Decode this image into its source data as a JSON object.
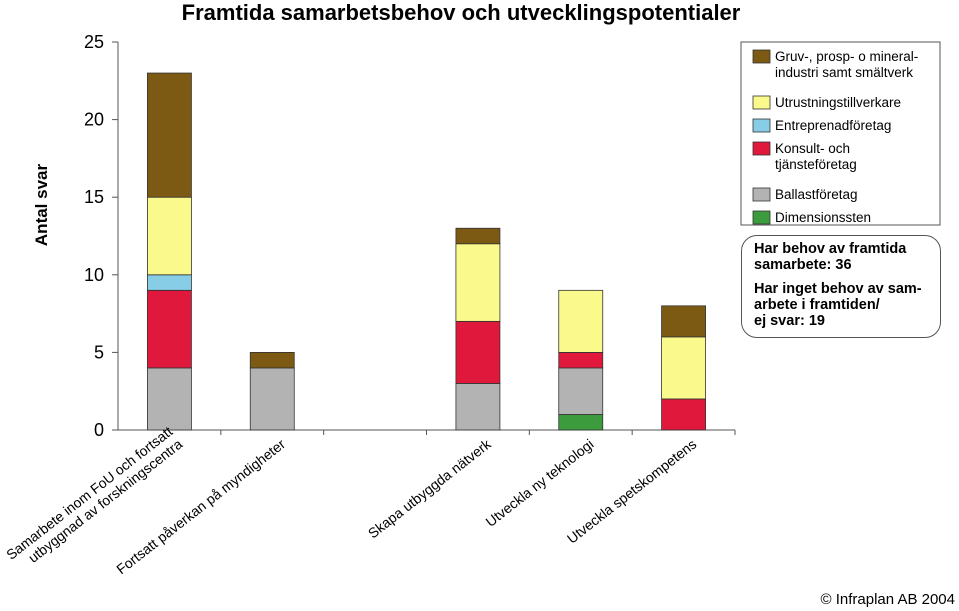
{
  "chart_data": {
    "type": "bar",
    "stacked": true,
    "title": "Framtida samarbetsbehov och utvecklingspotentialer",
    "ylabel": "Antal svar",
    "xlabel": "",
    "ylim": [
      0,
      25
    ],
    "yticks": [
      0,
      5,
      10,
      15,
      20,
      25
    ],
    "grid": false,
    "legend_position": "top-right",
    "categories": [
      "Samarbete inom FoU och fortsatt\nutbyggnad av forskningscentra",
      "Fortsatt påverkan på myndigheter",
      "",
      "Skapa utbyggda nätverk",
      "Utveckla ny teknologi",
      "Utveckla spetskompetens"
    ],
    "series": [
      {
        "name": "Dimensionssten",
        "color": "#3c9b3c",
        "values": [
          0,
          0,
          0,
          0,
          1,
          0
        ]
      },
      {
        "name": "Ballastföretag",
        "color": "#b3b3b3",
        "values": [
          4,
          4,
          0,
          3,
          3,
          0
        ]
      },
      {
        "name": "Konsult- och\ntjänsteföretag",
        "color": "#e0193c",
        "values": [
          5,
          0,
          0,
          4,
          1,
          2
        ]
      },
      {
        "name": "Entreprenadföretag",
        "color": "#87cde6",
        "values": [
          1,
          0,
          0,
          0,
          0,
          0
        ]
      },
      {
        "name": "Utrustningstillverkare",
        "color": "#fafa8c",
        "values": [
          5,
          0,
          0,
          5,
          4,
          4
        ]
      },
      {
        "name": "Gruv-, prosp- o mineral-\nindustri samt smältverk",
        "color": "#7d5a14",
        "values": [
          8,
          1,
          0,
          1,
          0,
          2
        ]
      }
    ]
  },
  "note": {
    "line1": "Har behov av framtida\nsamarbete: 36",
    "line2": "Har inget behov av sam-\narbete i framtiden/\nej svar: 19"
  },
  "copyright": "© Infraplan AB 2004"
}
